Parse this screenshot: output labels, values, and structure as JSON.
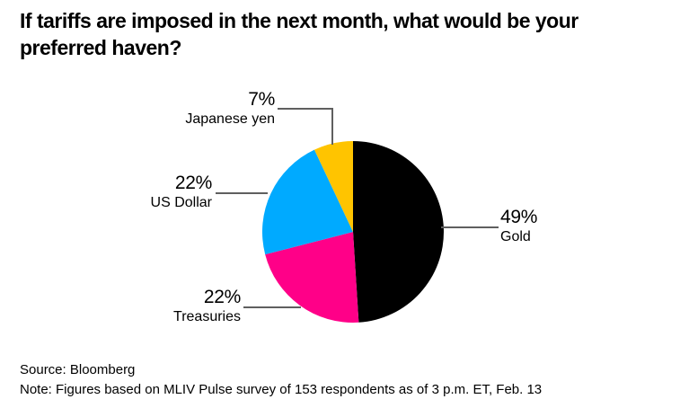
{
  "title": "If tariffs are imposed in the next month, what would be your preferred haven?",
  "chart_data": {
    "type": "pie",
    "title": "If tariffs are imposed in the next month, what would be your preferred haven?",
    "direction": "clockwise",
    "start_angle_deg": 0,
    "legend": "direct labels with leader lines",
    "slices": [
      {
        "label": "Gold",
        "value": 49,
        "display_pct": "49%",
        "color": "#000000",
        "label_side": "right"
      },
      {
        "label": "Treasuries",
        "value": 22,
        "display_pct": "22%",
        "color": "#FF0088",
        "label_side": "left"
      },
      {
        "label": "US Dollar",
        "value": 22,
        "display_pct": "22%",
        "color": "#00AAFF",
        "label_side": "left"
      },
      {
        "label": "Japanese yen",
        "value": 7,
        "display_pct": "7%",
        "color": "#FFC400",
        "label_side": "top-left"
      }
    ]
  },
  "footer": {
    "source": "Source: Bloomberg",
    "note": "Note: Figures based on MLIV Pulse survey of 153 respondents as of 3 p.m. ET, Feb. 13"
  },
  "colors": {
    "background": "#FFFFFF",
    "text": "#000000",
    "leader_line": "#5F5F5F"
  }
}
